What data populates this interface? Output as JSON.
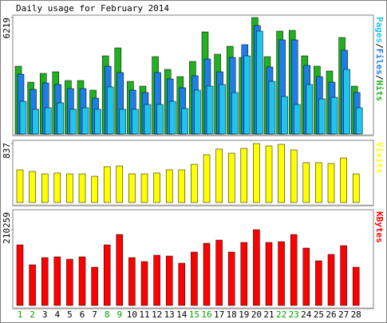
{
  "title": "Daily usage for February 2014",
  "legend_separator": "/",
  "chart_data": [
    {
      "type": "bar",
      "ylim": [
        0,
        6219
      ],
      "yticks": [
        6219
      ],
      "series": [
        {
          "name": "Pages",
          "color": "#20c4ec",
          "values": [
            1747,
            1321,
            1406,
            1661,
            1321,
            1406,
            1321,
            2513,
            1321,
            1321,
            1576,
            1576,
            1747,
            1363,
            2343,
            2556,
            2641,
            2215,
            4175,
            5495,
            2812,
            2002,
            1576,
            2641,
            1874,
            1960,
            3450,
            1406
          ]
        },
        {
          "name": "Files",
          "color": "#1e7ee8",
          "values": [
            3195,
            2386,
            2726,
            2641,
            2428,
            2428,
            1917,
            3621,
            3280,
            2343,
            2215,
            3280,
            2939,
            2471,
            3110,
            4004,
            3323,
            4089,
            4771,
            5793,
            3578,
            5027,
            5027,
            3664,
            3067,
            2769,
            4473,
            2215
          ]
        },
        {
          "name": "Hits",
          "color": "#20b020",
          "values": [
            3621,
            2769,
            3237,
            3323,
            2854,
            2854,
            2343,
            4174,
            4600,
            2811,
            2556,
            4132,
            3450,
            3067,
            3876,
            5452,
            4260,
            4686,
            4089,
            6219,
            4132,
            5495,
            5537,
            4174,
            3621,
            3365,
            5154,
            2556
          ]
        }
      ]
    },
    {
      "type": "bar",
      "ylim": [
        0,
        837
      ],
      "yticks": [
        837
      ],
      "series": [
        {
          "name": "Visits",
          "color": "#ffff00",
          "values": [
            464,
            441,
            407,
            419,
            407,
            407,
            373,
            509,
            520,
            407,
            407,
            419,
            464,
            464,
            543,
            679,
            758,
            701,
            769,
            837,
            803,
            826,
            747,
            566,
            566,
            554,
            633,
            407
          ]
        }
      ]
    },
    {
      "type": "bar",
      "ylim": [
        0,
        210259
      ],
      "yticks": [
        210259
      ],
      "categories": [
        "1",
        "2",
        "3",
        "4",
        "5",
        "6",
        "7",
        "8",
        "9",
        "10",
        "11",
        "12",
        "13",
        "14",
        "15",
        "16",
        "17",
        "18",
        "19",
        "20",
        "21",
        "22",
        "23",
        "24",
        "25",
        "26",
        "27",
        "28"
      ],
      "label_colors": [
        "#00a000",
        "#00a000",
        "#000000",
        "#000000",
        "#000000",
        "#000000",
        "#000000",
        "#00a000",
        "#00a000",
        "#000000",
        "#000000",
        "#000000",
        "#000000",
        "#000000",
        "#00a000",
        "#00a000",
        "#000000",
        "#000000",
        "#000000",
        "#000000",
        "#000000",
        "#00a000",
        "#00a000",
        "#000000",
        "#000000",
        "#000000",
        "#000000",
        "#000000"
      ],
      "series": [
        {
          "name": "KBytes",
          "color": "#ff0000",
          "values": [
            168207,
            112869,
            132789,
            134996,
            128357,
            134996,
            106227,
            168207,
            196963,
            132789,
            121717,
            139428,
            137213,
            117290,
            148275,
            172627,
            181468,
            148275,
            174836,
            210259,
            174836,
            177049,
            196963,
            159343,
            123931,
            141636,
            165993,
            106227
          ]
        }
      ]
    }
  ]
}
